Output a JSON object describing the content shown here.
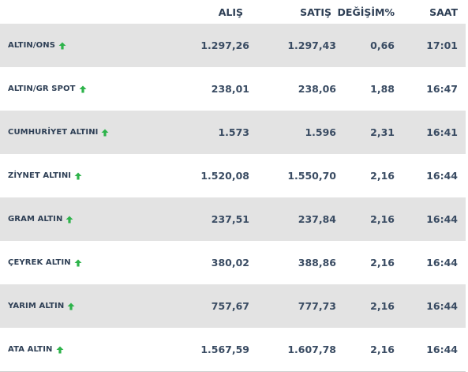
{
  "header": {
    "name": "",
    "alis": "ALIŞ",
    "satis": "SATIŞ",
    "degisim": "DEĞİŞİM%",
    "saat": "SAAT"
  },
  "trend_color": "#2db34a",
  "rows": [
    {
      "name": "ALTIN/ONS",
      "alis": "1.297,26",
      "satis": "1.297,43",
      "degisim": "0,66",
      "saat": "17:01",
      "trend_icon": "arrow-up-icon"
    },
    {
      "name": "ALTIN/GR SPOT",
      "alis": "238,01",
      "satis": "238,06",
      "degisim": "1,88",
      "saat": "16:47",
      "trend_icon": "arrow-up-icon"
    },
    {
      "name": "CUMHURİYET ALTINI",
      "alis": "1.573",
      "satis": "1.596",
      "degisim": "2,31",
      "saat": "16:41",
      "trend_icon": "arrow-up-icon"
    },
    {
      "name": "ZİYNET ALTINI",
      "alis": "1.520,08",
      "satis": "1.550,70",
      "degisim": "2,16",
      "saat": "16:44",
      "trend_icon": "arrow-up-icon"
    },
    {
      "name": "GRAM ALTIN",
      "alis": "237,51",
      "satis": "237,84",
      "degisim": "2,16",
      "saat": "16:44",
      "trend_icon": "arrow-up-icon"
    },
    {
      "name": "ÇEYREK ALTIN",
      "alis": "380,02",
      "satis": "388,86",
      "degisim": "2,16",
      "saat": "16:44",
      "trend_icon": "arrow-up-icon"
    },
    {
      "name": "YARIM ALTIN",
      "alis": "757,67",
      "satis": "777,73",
      "degisim": "2,16",
      "saat": "16:44",
      "trend_icon": "arrow-up-icon"
    },
    {
      "name": "ATA ALTIN",
      "alis": "1.567,59",
      "satis": "1.607,78",
      "degisim": "2,16",
      "saat": "16:44",
      "trend_icon": "arrow-up-icon"
    }
  ]
}
